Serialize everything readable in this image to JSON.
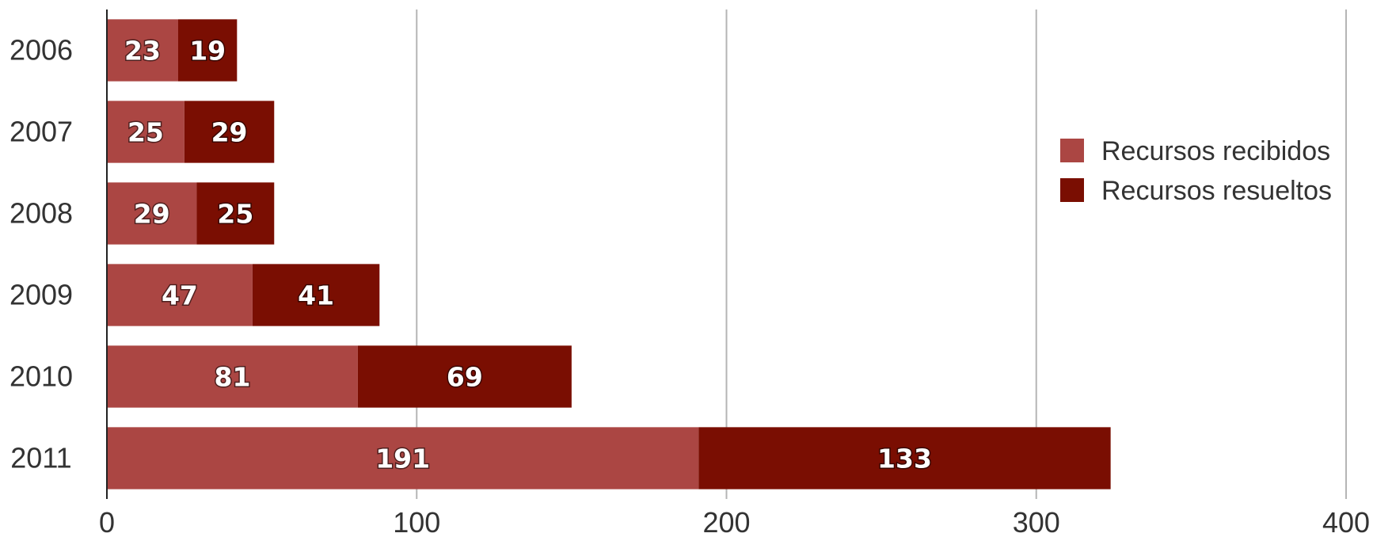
{
  "chart_data": {
    "type": "bar",
    "orientation": "horizontal",
    "stacked": true,
    "categories": [
      "2006",
      "2007",
      "2008",
      "2009",
      "2010",
      "2011"
    ],
    "series": [
      {
        "name": "Recursos recibidos",
        "values": [
          23,
          25,
          29,
          47,
          81,
          191
        ],
        "color": "#ab4643"
      },
      {
        "name": "Recursos resueltos",
        "values": [
          19,
          29,
          25,
          41,
          69,
          133
        ],
        "color": "#7a0e02"
      }
    ],
    "xlim": [
      0,
      400
    ],
    "xticks": [
      "0",
      "100",
      "200",
      "300",
      "400"
    ],
    "grid": "vertical",
    "legend_position": "right",
    "title": "",
    "xlabel": "",
    "ylabel": ""
  }
}
